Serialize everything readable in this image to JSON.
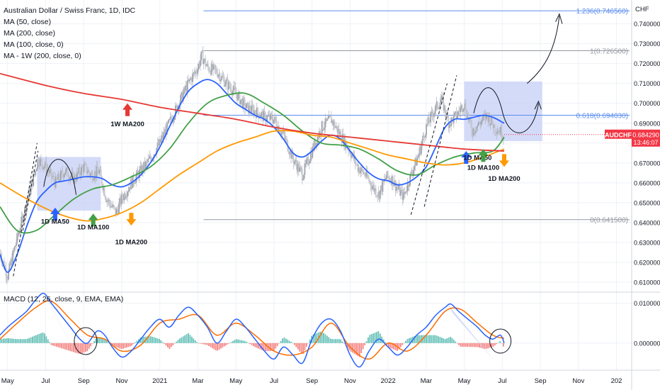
{
  "header": {
    "title": "Australian Dollar / Swiss Franc, 1D, IDC",
    "indicators": [
      "MA (50, close)",
      "MA (200, close)",
      "MA (100, close, 0)",
      "MA - 1W (200, close, 0)"
    ]
  },
  "colors": {
    "ma50": "#2962ff",
    "ma100": "#43a047",
    "ma200": "#ff9800",
    "ma1w200": "#e53935",
    "box": "#c5cff7",
    "fib": "#5b8def",
    "grid": "#eef1f6",
    "candle": "#b2b5be",
    "macd": "#2962ff",
    "signal": "#ff6d00",
    "hist_pos": "#26a69a",
    "hist_neg": "#ef5350"
  },
  "chart_data": [
    {
      "type": "line",
      "name": "price-pane",
      "y_unit": "CHF",
      "ylim": [
        0.605,
        0.752
      ],
      "y_ticks": [
        "0.740000",
        "0.730000",
        "0.720000",
        "0.710000",
        "0.700000",
        "0.690000",
        "0.680000",
        "0.670000",
        "0.660000",
        "0.650000",
        "0.640000",
        "0.630000",
        "0.620000",
        "0.610000"
      ],
      "y_tick_values": [
        0.74,
        0.73,
        0.72,
        0.71,
        0.7,
        0.69,
        0.68,
        0.67,
        0.66,
        0.65,
        0.64,
        0.63,
        0.62,
        0.61
      ],
      "x_ticks": [
        "May",
        "Jul",
        "Sep",
        "Nov",
        "2021",
        "Mar",
        "May",
        "Jul",
        "Sep",
        "Nov",
        "2022",
        "Mar",
        "May",
        "Jul",
        "Sep",
        "Nov",
        "202"
      ],
      "x_tick_months": [
        0,
        2,
        4,
        6,
        8,
        10,
        12,
        14,
        16,
        18,
        20,
        22,
        24,
        26,
        28,
        30,
        32
      ],
      "x_range_months": [
        -0.4,
        32.8
      ],
      "last_month": 26.1,
      "price": {
        "months": [
          -0.4,
          0,
          0.5,
          1,
          1.4,
          1.6,
          2,
          2.5,
          3,
          3.5,
          4,
          4.4,
          4.8,
          5.2,
          5.7,
          6,
          6.5,
          7,
          7.5,
          8,
          8.5,
          9,
          9.5,
          10,
          10.2,
          10.5,
          11,
          11.5,
          12,
          12.5,
          13,
          13.5,
          14,
          14.5,
          15,
          15.5,
          16,
          16.5,
          17,
          17.5,
          18,
          18.4,
          18.8,
          19.2,
          19.5,
          19.9,
          20.2,
          20.5,
          20.8,
          21.2,
          21.6,
          22,
          22.4,
          22.8,
          23.2,
          23.6,
          24,
          24.4,
          24.8,
          25.2,
          25.6,
          25.9,
          26.1
        ],
        "values": [
          0.625,
          0.613,
          0.632,
          0.65,
          0.664,
          0.672,
          0.668,
          0.66,
          0.666,
          0.662,
          0.668,
          0.664,
          0.666,
          0.652,
          0.645,
          0.652,
          0.66,
          0.666,
          0.672,
          0.68,
          0.69,
          0.7,
          0.71,
          0.718,
          0.724,
          0.718,
          0.716,
          0.71,
          0.705,
          0.698,
          0.696,
          0.693,
          0.692,
          0.684,
          0.672,
          0.664,
          0.676,
          0.688,
          0.692,
          0.684,
          0.676,
          0.668,
          0.664,
          0.658,
          0.654,
          0.663,
          0.662,
          0.657,
          0.653,
          0.664,
          0.674,
          0.688,
          0.696,
          0.702,
          0.69,
          0.694,
          0.7,
          0.686,
          0.69,
          0.694,
          0.688,
          0.686,
          0.684
        ]
      },
      "series": [
        {
          "name": "MA (50, close)",
          "key": "ma50",
          "months": [
            -0.4,
            0,
            0.5,
            1,
            1.5,
            2,
            2.5,
            3,
            3.5,
            4,
            4.5,
            5,
            5.5,
            6,
            6.5,
            7,
            7.5,
            8,
            8.5,
            9,
            9.5,
            10,
            10.5,
            11,
            11.5,
            12,
            12.5,
            13,
            13.5,
            14,
            14.5,
            15,
            15.5,
            16,
            16.5,
            17,
            17.5,
            18,
            18.5,
            19,
            19.5,
            20,
            20.5,
            21,
            21.5,
            22,
            22.5,
            23,
            23.5,
            24,
            24.5,
            25,
            25.5,
            26.1
          ],
          "values": [
            0.624,
            0.615,
            0.624,
            0.638,
            0.65,
            0.656,
            0.66,
            0.661,
            0.662,
            0.663,
            0.663,
            0.662,
            0.659,
            0.658,
            0.66,
            0.664,
            0.67,
            0.678,
            0.688,
            0.698,
            0.706,
            0.71,
            0.712,
            0.71,
            0.705,
            0.7,
            0.697,
            0.694,
            0.692,
            0.688,
            0.682,
            0.675,
            0.673,
            0.676,
            0.681,
            0.684,
            0.682,
            0.676,
            0.67,
            0.665,
            0.662,
            0.661,
            0.659,
            0.66,
            0.663,
            0.668,
            0.678,
            0.688,
            0.692,
            0.692,
            0.693,
            0.694,
            0.693,
            0.69
          ]
        },
        {
          "name": "MA (100, close, 0)",
          "key": "ma100",
          "months": [
            -0.4,
            0.5,
            1.5,
            2.5,
            3.5,
            4.5,
            5.5,
            6.5,
            7.5,
            8.5,
            9.5,
            10.5,
            11.5,
            12.5,
            13.5,
            14.5,
            15.5,
            16.5,
            17.5,
            18.5,
            19.5,
            20.5,
            21.5,
            22.5,
            23.5,
            24.5,
            25.5,
            26.1
          ],
          "values": [
            0.648,
            0.636,
            0.636,
            0.644,
            0.652,
            0.657,
            0.659,
            0.663,
            0.668,
            0.677,
            0.69,
            0.7,
            0.704,
            0.705,
            0.7,
            0.694,
            0.686,
            0.68,
            0.679,
            0.677,
            0.672,
            0.666,
            0.664,
            0.669,
            0.673,
            0.675,
            0.676,
            0.683
          ]
        },
        {
          "name": "MA (200, close)",
          "key": "ma200",
          "months": [
            -0.4,
            1,
            2.5,
            4,
            5,
            6,
            7,
            8,
            9,
            10,
            11,
            12,
            13,
            14,
            15,
            16,
            17,
            18,
            19,
            20,
            21,
            22,
            23,
            24,
            25,
            26.1
          ],
          "values": [
            0.66,
            0.652,
            0.645,
            0.641,
            0.642,
            0.645,
            0.65,
            0.657,
            0.664,
            0.67,
            0.676,
            0.68,
            0.683,
            0.686,
            0.686,
            0.684,
            0.683,
            0.68,
            0.677,
            0.674,
            0.672,
            0.67,
            0.669,
            0.67,
            0.673,
            0.677
          ]
        },
        {
          "name": "MA - 1W (200, close, 0)",
          "key": "ma1w200",
          "months": [
            -0.4,
            2,
            4,
            6,
            8,
            10,
            12,
            14,
            16,
            18,
            20,
            22,
            24,
            26.1
          ],
          "values": [
            0.715,
            0.709,
            0.705,
            0.702,
            0.698,
            0.695,
            0.692,
            0.688,
            0.685,
            0.683,
            0.681,
            0.679,
            0.677,
            0.676
          ]
        }
      ],
      "fib_levels": [
        {
          "label": "1.236(0.746560)",
          "value": 0.74656,
          "color": "#5b8def",
          "m_start": 10.3
        },
        {
          "label": "1(0.726500)",
          "value": 0.7265,
          "color": "#9598a1",
          "m_start": 10.3
        },
        {
          "label": "0.618(0.694030)",
          "value": 0.69403,
          "color": "#5b8def",
          "m_start": 10.3
        },
        {
          "label": "0(0.641500)",
          "value": 0.6415,
          "color": "#9598a1",
          "m_start": 10.3
        }
      ],
      "boxes": [
        {
          "m0": 1.55,
          "m1": 4.9,
          "v0": 0.646,
          "v1": 0.673
        },
        {
          "m0": 24.0,
          "m1": 28.1,
          "v0": 0.681,
          "v1": 0.711
        }
      ],
      "annotations": [
        {
          "text": "1W MA200",
          "m": 6.3,
          "v": 0.6885,
          "color": "#e53935",
          "dir": "up",
          "am": 6.3,
          "av": 0.7
        },
        {
          "text": "1D MA50",
          "m": 2.5,
          "v": 0.6395,
          "color": "#2962ff",
          "dir": "up",
          "am": 2.5,
          "av": 0.6475
        },
        {
          "text": "1D MA100",
          "m": 4.5,
          "v": 0.6365,
          "color": "#43a047",
          "dir": "up",
          "am": 4.5,
          "av": 0.6445
        },
        {
          "text": "1D MA200",
          "m": 6.5,
          "v": 0.629,
          "color": "#ff9800",
          "dir": "down",
          "am": 6.5,
          "av": 0.6385
        },
        {
          "text": "1D MA50",
          "m": 24.7,
          "v": 0.6715,
          "color": "#2962ff",
          "dir": "up",
          "am": 24.1,
          "av": 0.676
        },
        {
          "text": "1D MA100",
          "m": 25.0,
          "v": 0.6665,
          "color": "#43a047",
          "dir": "up",
          "am": 25.0,
          "av": 0.677
        },
        {
          "text": "1D MA200",
          "m": 26.1,
          "v": 0.661,
          "color": "#ff9800",
          "dir": "down",
          "am": 26.1,
          "av": 0.668
        }
      ],
      "last_price_label": {
        "symbol": "AUDCHF",
        "price": "0.684290",
        "countdown": "13:46:07",
        "value": 0.68429,
        "color": "#f23645"
      }
    },
    {
      "type": "line",
      "name": "macd-pane",
      "title": "MACD (12, 26, close, 9, EMA, EMA)",
      "ylim": [
        -0.0068,
        0.0128
      ],
      "y_ticks": [
        "0.010000",
        "0.000000"
      ],
      "y_tick_values": [
        0.01,
        0.0
      ],
      "macd": {
        "months": [
          -0.4,
          0,
          0.5,
          1,
          1.5,
          1.9,
          2.3,
          2.8,
          3.3,
          3.8,
          4.2,
          4.7,
          5.1,
          5.5,
          6,
          6.5,
          7,
          7.5,
          8,
          8.5,
          9,
          9.5,
          10,
          10.5,
          11,
          11.5,
          12,
          12.5,
          13,
          13.5,
          14,
          14.5,
          15,
          15.5,
          16,
          16.5,
          17,
          17.5,
          18,
          18.5,
          19,
          19.5,
          20,
          20.5,
          21,
          21.5,
          22,
          22.5,
          23,
          23.3,
          23.7,
          24.2,
          24.7,
          25.1,
          25.5,
          25.9,
          26.1
        ],
        "values": [
          0.002,
          0.004,
          0.006,
          0.008,
          0.011,
          0.0125,
          0.01,
          0.007,
          0.004,
          0.001,
          0.0,
          0.003,
          0.002,
          -0.001,
          -0.0035,
          -0.002,
          0.001,
          0.004,
          0.006,
          0.004,
          0.007,
          0.009,
          0.007,
          0.004,
          0.0,
          0.003,
          0.006,
          0.004,
          0.001,
          -0.002,
          -0.004,
          -0.001,
          -0.003,
          -0.005,
          0.001,
          0.005,
          0.006,
          0.003,
          -0.003,
          -0.006,
          -0.002,
          0.001,
          -0.001,
          -0.003,
          -0.001,
          0.002,
          0.004,
          0.007,
          0.009,
          0.0098,
          0.008,
          0.006,
          0.004,
          0.002,
          0.001,
          0.002,
          0.0
        ]
      },
      "signal": {
        "months": [
          -0.4,
          0.5,
          1.5,
          2.3,
          3.3,
          4.2,
          5.1,
          6,
          7,
          8,
          9,
          10,
          11,
          12,
          13,
          14,
          15,
          16,
          17,
          18,
          19,
          20,
          21,
          22,
          23,
          23.8,
          24.7,
          25.5,
          26.1
        ],
        "values": [
          0.001,
          0.005,
          0.009,
          0.0105,
          0.006,
          0.002,
          0.001,
          -0.002,
          -0.0005,
          0.005,
          0.006,
          0.007,
          0.002,
          0.005,
          0.002,
          -0.002,
          -0.003,
          -0.001,
          0.005,
          -0.001,
          -0.004,
          0.0,
          -0.002,
          0.002,
          0.008,
          0.0085,
          0.005,
          0.002,
          0.0012
        ]
      },
      "circles": [
        {
          "m": 4.1,
          "v": 0.0005,
          "rx": 16,
          "ry": 19
        },
        {
          "m": 25.9,
          "v": 0.0005,
          "rx": 15,
          "ry": 17
        }
      ],
      "wedges": [
        {
          "m0": 1.9,
          "v0": 0.0125,
          "m1": 3.8,
          "v1": -0.0045
        },
        {
          "m0": 23.1,
          "v0": 0.01,
          "m1": 25.6,
          "v1": -0.0045
        }
      ]
    }
  ]
}
